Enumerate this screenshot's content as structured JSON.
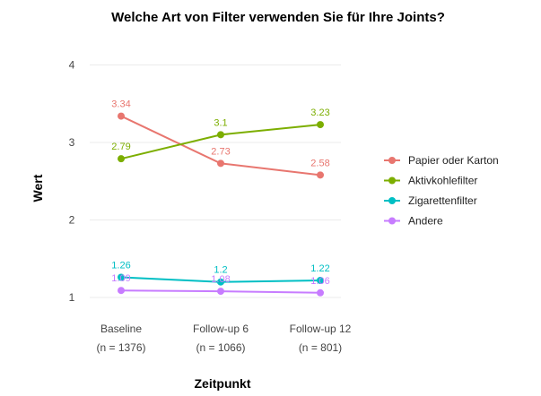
{
  "chart_data": {
    "type": "line",
    "title": "Welche Art von Filter verwenden Sie für Ihre Joints?",
    "xlabel": "Zeitpunkt",
    "ylabel": "Wert",
    "categories": [
      "Baseline",
      "Follow-up 6",
      "Follow-up 12"
    ],
    "category_n": [
      "(n = 1376)",
      "(n = 1066)",
      "(n = 801)"
    ],
    "yticks": [
      1,
      2,
      3,
      4
    ],
    "ytick_labels": [
      "1",
      "2",
      "3",
      "4"
    ],
    "ylim": [
      0.85,
      4.1
    ],
    "grid": true,
    "legend_position": "right",
    "series": [
      {
        "name": "Papier oder Karton",
        "color": "#E8766F",
        "values": [
          3.34,
          2.73,
          2.58
        ],
        "labels": [
          "3.34",
          "2.73",
          "2.58"
        ]
      },
      {
        "name": "Aktivkohlefilter",
        "color": "#7CAE00",
        "values": [
          2.79,
          3.1,
          3.23
        ],
        "labels": [
          "2.79",
          "3.1",
          "3.23"
        ]
      },
      {
        "name": "Zigarettenfilter",
        "color": "#00BFC4",
        "values": [
          1.26,
          1.2,
          1.22
        ],
        "labels": [
          "1.26",
          "1.2",
          "1.22"
        ]
      },
      {
        "name": "Andere",
        "color": "#C77CFF",
        "values": [
          1.09,
          1.08,
          1.06
        ],
        "labels": [
          "1.09",
          "1.08",
          "1.06"
        ]
      }
    ]
  }
}
